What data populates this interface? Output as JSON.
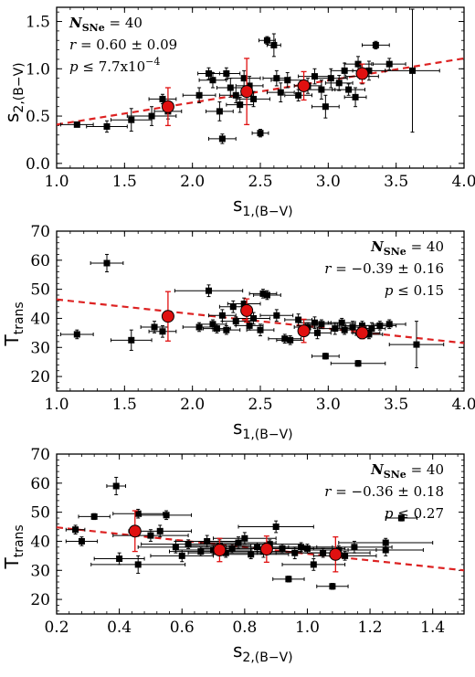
{
  "chart_data": [
    {
      "type": "scatter",
      "xlabel": {
        "main": "s",
        "sub": "1,(B−V)"
      },
      "ylabel": {
        "main": "s",
        "sub": "2,(B−V)"
      },
      "xlim": [
        1.0,
        4.0
      ],
      "ylim": [
        -0.05,
        1.65
      ],
      "xticks": [
        "1.0",
        "1.5",
        "2.0",
        "2.5",
        "3.0",
        "3.5",
        "4.0"
      ],
      "yticks": [
        "0.0",
        "0.5",
        "1.0",
        "1.5"
      ],
      "annotation": {
        "n_label": "N",
        "n_sub": "SNe",
        "n_value": " = 40",
        "r_line": " = 0.60 ± 0.09",
        "p_line": " ≤ 7.7x10",
        "p_exp": "−4",
        "align": "top-left"
      },
      "points": [
        {
          "x": 1.15,
          "y": 0.41,
          "xerr": 0.12,
          "yerr": 0.02
        },
        {
          "x": 1.37,
          "y": 0.39,
          "xerr": 0.15,
          "yerr": 0.06
        },
        {
          "x": 1.55,
          "y": 0.46,
          "xerr": 0.15,
          "yerr": 0.12
        },
        {
          "x": 1.7,
          "y": 0.5,
          "xerr": 0.18,
          "yerr": 0.1
        },
        {
          "x": 1.78,
          "y": 0.68,
          "xerr": 0.1,
          "yerr": 0.05
        },
        {
          "x": 1.82,
          "y": 0.55,
          "xerr": 0.1,
          "yerr": 0.08
        },
        {
          "x": 2.05,
          "y": 0.72,
          "xerr": 0.12,
          "yerr": 0.08
        },
        {
          "x": 2.12,
          "y": 0.95,
          "xerr": 0.08,
          "yerr": 0.06
        },
        {
          "x": 2.15,
          "y": 0.88,
          "xerr": 0.1,
          "yerr": 0.08
        },
        {
          "x": 2.2,
          "y": 0.55,
          "xerr": 0.1,
          "yerr": 0.1
        },
        {
          "x": 2.22,
          "y": 0.26,
          "xerr": 0.1,
          "yerr": 0.05
        },
        {
          "x": 2.25,
          "y": 0.95,
          "xerr": 0.1,
          "yerr": 0.06
        },
        {
          "x": 2.28,
          "y": 0.8,
          "xerr": 0.1,
          "yerr": 0.1
        },
        {
          "x": 2.32,
          "y": 0.72,
          "xerr": 0.12,
          "yerr": 0.08
        },
        {
          "x": 2.35,
          "y": 0.62,
          "xerr": 0.1,
          "yerr": 0.08
        },
        {
          "x": 2.38,
          "y": 0.9,
          "xerr": 0.12,
          "yerr": 0.08
        },
        {
          "x": 2.42,
          "y": 0.82,
          "xerr": 0.1,
          "yerr": 0.1
        },
        {
          "x": 2.45,
          "y": 0.68,
          "xerr": 0.12,
          "yerr": 0.08
        },
        {
          "x": 2.5,
          "y": 0.32,
          "xerr": 0.06,
          "yerr": 0.04
        },
        {
          "x": 2.55,
          "y": 1.3,
          "xerr": 0.06,
          "yerr": 0.04
        },
        {
          "x": 2.6,
          "y": 1.25,
          "xerr": 0.05,
          "yerr": 0.12
        },
        {
          "x": 2.62,
          "y": 0.9,
          "xerr": 0.1,
          "yerr": 0.08
        },
        {
          "x": 2.65,
          "y": 0.75,
          "xerr": 0.1,
          "yerr": 0.1
        },
        {
          "x": 2.7,
          "y": 0.88,
          "xerr": 0.12,
          "yerr": 0.08
        },
        {
          "x": 2.78,
          "y": 0.72,
          "xerr": 0.1,
          "yerr": 0.06
        },
        {
          "x": 2.85,
          "y": 0.82,
          "xerr": 0.1,
          "yerr": 0.08
        },
        {
          "x": 2.9,
          "y": 0.92,
          "xerr": 0.12,
          "yerr": 0.08
        },
        {
          "x": 2.95,
          "y": 0.78,
          "xerr": 0.1,
          "yerr": 0.1
        },
        {
          "x": 2.98,
          "y": 0.6,
          "xerr": 0.1,
          "yerr": 0.12
        },
        {
          "x": 3.02,
          "y": 0.9,
          "xerr": 0.12,
          "yerr": 0.1
        },
        {
          "x": 3.08,
          "y": 0.85,
          "xerr": 0.1,
          "yerr": 0.08
        },
        {
          "x": 3.12,
          "y": 0.98,
          "xerr": 0.1,
          "yerr": 0.08
        },
        {
          "x": 3.15,
          "y": 0.78,
          "xerr": 0.12,
          "yerr": 0.06
        },
        {
          "x": 3.2,
          "y": 0.7,
          "xerr": 0.08,
          "yerr": 0.1
        },
        {
          "x": 3.22,
          "y": 1.05,
          "xerr": 0.1,
          "yerr": 0.08
        },
        {
          "x": 3.25,
          "y": 0.92,
          "xerr": 0.12,
          "yerr": 0.08
        },
        {
          "x": 3.3,
          "y": 0.98,
          "xerr": 0.12,
          "yerr": 0.1
        },
        {
          "x": 3.35,
          "y": 1.25,
          "xerr": 0.1,
          "yerr": 0.04
        },
        {
          "x": 3.45,
          "y": 1.05,
          "xerr": 0.12,
          "yerr": 0.06
        },
        {
          "x": 3.62,
          "y": 0.98,
          "xerr": 0.2,
          "yerr": 0.65
        }
      ],
      "binned": [
        {
          "x": 1.82,
          "y": 0.6,
          "xerr": 0.0,
          "yerr": 0.2
        },
        {
          "x": 2.4,
          "y": 0.76,
          "xerr": 0.0,
          "yerr": 0.35
        },
        {
          "x": 2.82,
          "y": 0.82,
          "xerr": 0.0,
          "yerr": 0.15
        },
        {
          "x": 3.25,
          "y": 0.95,
          "xerr": 0.0,
          "yerr": 0.1
        }
      ],
      "fit": {
        "x": [
          1.0,
          4.0
        ],
        "y": [
          0.41,
          1.11
        ]
      }
    },
    {
      "type": "scatter",
      "xlabel": {
        "main": "s",
        "sub": "1,(B−V)"
      },
      "ylabel": {
        "main": "T",
        "sub": "trans"
      },
      "xlim": [
        1.0,
        4.0
      ],
      "ylim": [
        15,
        70
      ],
      "xticks": [
        "1.0",
        "1.5",
        "2.0",
        "2.5",
        "3.0",
        "3.5",
        "4.0"
      ],
      "yticks": [
        "20",
        "30",
        "40",
        "50",
        "60",
        "70"
      ],
      "annotation": {
        "n_label": "N",
        "n_sub": "SNe",
        "n_value": " = 40",
        "r_line": " = −0.39 ± 0.16",
        "p_line": " ≤ 0.15",
        "p_exp": "",
        "align": "top-right"
      },
      "points": [
        {
          "x": 1.15,
          "y": 34.5,
          "xerr": 0.12,
          "yerr": 1.5
        },
        {
          "x": 1.37,
          "y": 59.0,
          "xerr": 0.12,
          "yerr": 3.0
        },
        {
          "x": 1.55,
          "y": 32.5,
          "xerr": 0.15,
          "yerr": 3.5
        },
        {
          "x": 1.72,
          "y": 37.0,
          "xerr": 0.1,
          "yerr": 2.0
        },
        {
          "x": 1.78,
          "y": 35.5,
          "xerr": 0.1,
          "yerr": 2.0
        },
        {
          "x": 2.05,
          "y": 37.0,
          "xerr": 0.12,
          "yerr": 1.5
        },
        {
          "x": 2.12,
          "y": 49.5,
          "xerr": 0.25,
          "yerr": 2.0
        },
        {
          "x": 2.15,
          "y": 38.0,
          "xerr": 0.1,
          "yerr": 1.5
        },
        {
          "x": 2.18,
          "y": 36.5,
          "xerr": 0.1,
          "yerr": 1.5
        },
        {
          "x": 2.22,
          "y": 41.0,
          "xerr": 0.1,
          "yerr": 2.0
        },
        {
          "x": 2.25,
          "y": 36.0,
          "xerr": 0.1,
          "yerr": 1.5
        },
        {
          "x": 2.3,
          "y": 44.0,
          "xerr": 0.1,
          "yerr": 2.0
        },
        {
          "x": 2.32,
          "y": 39.0,
          "xerr": 0.1,
          "yerr": 1.5
        },
        {
          "x": 2.38,
          "y": 45.0,
          "xerr": 0.12,
          "yerr": 2.0
        },
        {
          "x": 2.42,
          "y": 37.5,
          "xerr": 0.1,
          "yerr": 1.5
        },
        {
          "x": 2.45,
          "y": 40.0,
          "xerr": 0.12,
          "yerr": 2.0
        },
        {
          "x": 2.5,
          "y": 36.0,
          "xerr": 0.1,
          "yerr": 2.0
        },
        {
          "x": 2.52,
          "y": 48.5,
          "xerr": 0.1,
          "yerr": 1.5
        },
        {
          "x": 2.55,
          "y": 48.0,
          "xerr": 0.1,
          "yerr": 1.5
        },
        {
          "x": 2.62,
          "y": 41.0,
          "xerr": 0.12,
          "yerr": 2.0
        },
        {
          "x": 2.68,
          "y": 33.0,
          "xerr": 0.12,
          "yerr": 1.5
        },
        {
          "x": 2.72,
          "y": 32.5,
          "xerr": 0.1,
          "yerr": 1.5
        },
        {
          "x": 2.78,
          "y": 39.5,
          "xerr": 0.1,
          "yerr": 2.0
        },
        {
          "x": 2.85,
          "y": 37.0,
          "xerr": 0.1,
          "yerr": 1.5
        },
        {
          "x": 2.9,
          "y": 38.5,
          "xerr": 0.12,
          "yerr": 2.0
        },
        {
          "x": 2.92,
          "y": 35.0,
          "xerr": 0.1,
          "yerr": 2.0
        },
        {
          "x": 2.95,
          "y": 38.0,
          "xerr": 0.12,
          "yerr": 1.5
        },
        {
          "x": 2.98,
          "y": 27.0,
          "xerr": 0.1,
          "yerr": 1.0
        },
        {
          "x": 3.05,
          "y": 36.5,
          "xerr": 0.12,
          "yerr": 2.0
        },
        {
          "x": 3.1,
          "y": 38.5,
          "xerr": 0.1,
          "yerr": 1.5
        },
        {
          "x": 3.12,
          "y": 36.0,
          "xerr": 0.1,
          "yerr": 1.5
        },
        {
          "x": 3.18,
          "y": 37.0,
          "xerr": 0.1,
          "yerr": 2.0
        },
        {
          "x": 3.22,
          "y": 24.5,
          "xerr": 0.2,
          "yerr": 1.0
        },
        {
          "x": 3.25,
          "y": 37.5,
          "xerr": 0.12,
          "yerr": 1.5
        },
        {
          "x": 3.28,
          "y": 35.0,
          "xerr": 0.1,
          "yerr": 1.5
        },
        {
          "x": 3.3,
          "y": 34.5,
          "xerr": 0.1,
          "yerr": 1.5
        },
        {
          "x": 3.32,
          "y": 36.5,
          "xerr": 0.1,
          "yerr": 2.0
        },
        {
          "x": 3.38,
          "y": 37.5,
          "xerr": 0.12,
          "yerr": 1.5
        },
        {
          "x": 3.45,
          "y": 38.0,
          "xerr": 0.12,
          "yerr": 1.5
        },
        {
          "x": 3.65,
          "y": 31.0,
          "xerr": 0.2,
          "yerr": 8.0
        }
      ],
      "binned": [
        {
          "x": 1.82,
          "y": 40.7,
          "xerr": 0.0,
          "yerr": 8.5
        },
        {
          "x": 2.4,
          "y": 42.7,
          "xerr": 0.0,
          "yerr": 4.0
        },
        {
          "x": 2.82,
          "y": 35.7,
          "xerr": 0.0,
          "yerr": 4.0
        },
        {
          "x": 3.25,
          "y": 35.0,
          "xerr": 0.0,
          "yerr": 2.0
        }
      ],
      "fit": {
        "x": [
          1.0,
          4.0
        ],
        "y": [
          46.5,
          31.5
        ]
      }
    },
    {
      "type": "scatter",
      "xlabel": {
        "main": "s",
        "sub": "2,(B−V)"
      },
      "ylabel": {
        "main": "T",
        "sub": "trans"
      },
      "xlim": [
        0.2,
        1.5
      ],
      "ylim": [
        15,
        70
      ],
      "xticks": [
        "0.2",
        "0.4",
        "0.6",
        "0.8",
        "1.0",
        "1.2",
        "1.4"
      ],
      "yticks": [
        "20",
        "30",
        "40",
        "50",
        "60",
        "70"
      ],
      "annotation": {
        "n_label": "N",
        "n_sub": "SNe",
        "n_value": " = 40",
        "r_line": " = −0.36 ± 0.18",
        "p_line": " ≤ 0.27",
        "p_exp": "",
        "align": "top-right"
      },
      "points": [
        {
          "x": 0.26,
          "y": 44.0,
          "xerr": 0.03,
          "yerr": 1.5
        },
        {
          "x": 0.32,
          "y": 48.5,
          "xerr": 0.05,
          "yerr": 1.0
        },
        {
          "x": 0.39,
          "y": 59.0,
          "xerr": 0.03,
          "yerr": 3.0
        },
        {
          "x": 0.4,
          "y": 34.0,
          "xerr": 0.08,
          "yerr": 2.0
        },
        {
          "x": 0.46,
          "y": 32.0,
          "xerr": 0.15,
          "yerr": 3.0
        },
        {
          "x": 0.46,
          "y": 49.5,
          "xerr": 0.08,
          "yerr": 1.5
        },
        {
          "x": 0.5,
          "y": 42.0,
          "xerr": 0.12,
          "yerr": 2.0
        },
        {
          "x": 0.53,
          "y": 43.5,
          "xerr": 0.1,
          "yerr": 2.0
        },
        {
          "x": 0.55,
          "y": 49.0,
          "xerr": 0.08,
          "yerr": 1.5
        },
        {
          "x": 0.58,
          "y": 38.0,
          "xerr": 0.12,
          "yerr": 2.0
        },
        {
          "x": 0.62,
          "y": 39.0,
          "xerr": 0.15,
          "yerr": 1.5
        },
        {
          "x": 0.66,
          "y": 36.5,
          "xerr": 0.1,
          "yerr": 1.5
        },
        {
          "x": 0.7,
          "y": 37.0,
          "xerr": 0.12,
          "yerr": 1.5
        },
        {
          "x": 0.72,
          "y": 38.5,
          "xerr": 0.1,
          "yerr": 2.0
        },
        {
          "x": 0.74,
          "y": 36.0,
          "xerr": 0.12,
          "yerr": 1.5
        },
        {
          "x": 0.76,
          "y": 37.5,
          "xerr": 0.1,
          "yerr": 1.5
        },
        {
          "x": 0.78,
          "y": 39.5,
          "xerr": 0.12,
          "yerr": 2.0
        },
        {
          "x": 0.8,
          "y": 41.0,
          "xerr": 0.1,
          "yerr": 2.0
        },
        {
          "x": 0.82,
          "y": 35.5,
          "xerr": 0.12,
          "yerr": 1.5
        },
        {
          "x": 0.84,
          "y": 38.0,
          "xerr": 0.1,
          "yerr": 1.5
        },
        {
          "x": 0.86,
          "y": 36.5,
          "xerr": 0.12,
          "yerr": 2.0
        },
        {
          "x": 0.88,
          "y": 39.0,
          "xerr": 0.1,
          "yerr": 1.5
        },
        {
          "x": 0.9,
          "y": 45.0,
          "xerr": 0.12,
          "yerr": 2.0
        },
        {
          "x": 0.92,
          "y": 37.5,
          "xerr": 0.1,
          "yerr": 1.5
        },
        {
          "x": 0.94,
          "y": 27.0,
          "xerr": 0.05,
          "yerr": 1.0
        },
        {
          "x": 0.96,
          "y": 36.0,
          "xerr": 0.12,
          "yerr": 2.0
        },
        {
          "x": 0.98,
          "y": 38.0,
          "xerr": 0.1,
          "yerr": 1.5
        },
        {
          "x": 1.0,
          "y": 37.5,
          "xerr": 0.12,
          "yerr": 1.5
        },
        {
          "x": 1.02,
          "y": 32.0,
          "xerr": 0.1,
          "yerr": 2.0
        },
        {
          "x": 1.05,
          "y": 36.0,
          "xerr": 0.15,
          "yerr": 1.5
        },
        {
          "x": 1.08,
          "y": 24.5,
          "xerr": 0.05,
          "yerr": 1.0
        },
        {
          "x": 1.1,
          "y": 37.0,
          "xerr": 0.12,
          "yerr": 1.5
        },
        {
          "x": 1.12,
          "y": 35.0,
          "xerr": 0.1,
          "yerr": 1.5
        },
        {
          "x": 1.15,
          "y": 38.0,
          "xerr": 0.12,
          "yerr": 2.0
        },
        {
          "x": 1.25,
          "y": 39.5,
          "xerr": 0.15,
          "yerr": 1.5
        },
        {
          "x": 1.25,
          "y": 37.0,
          "xerr": 0.12,
          "yerr": 2.0
        },
        {
          "x": 1.3,
          "y": 48.0,
          "xerr": 0.05,
          "yerr": 1.0
        },
        {
          "x": 0.28,
          "y": 40.0,
          "xerr": 0.05,
          "yerr": 1.5
        },
        {
          "x": 0.6,
          "y": 35.0,
          "xerr": 0.1,
          "yerr": 2.0
        },
        {
          "x": 0.68,
          "y": 40.0,
          "xerr": 0.1,
          "yerr": 2.0
        }
      ],
      "binned": [
        {
          "x": 0.45,
          "y": 43.5,
          "xerr": 0.0,
          "yerr": 7.0
        },
        {
          "x": 0.72,
          "y": 37.0,
          "xerr": 0.0,
          "yerr": 4.0
        },
        {
          "x": 0.87,
          "y": 37.3,
          "xerr": 0.0,
          "yerr": 4.5
        },
        {
          "x": 1.09,
          "y": 35.5,
          "xerr": 0.0,
          "yerr": 6.0
        }
      ],
      "fit": {
        "x": [
          0.2,
          1.5
        ],
        "y": [
          44.8,
          30.0
        ]
      }
    }
  ],
  "colors": {
    "points": "#000000",
    "binned": "#e01010",
    "fit": "#dd2222"
  }
}
